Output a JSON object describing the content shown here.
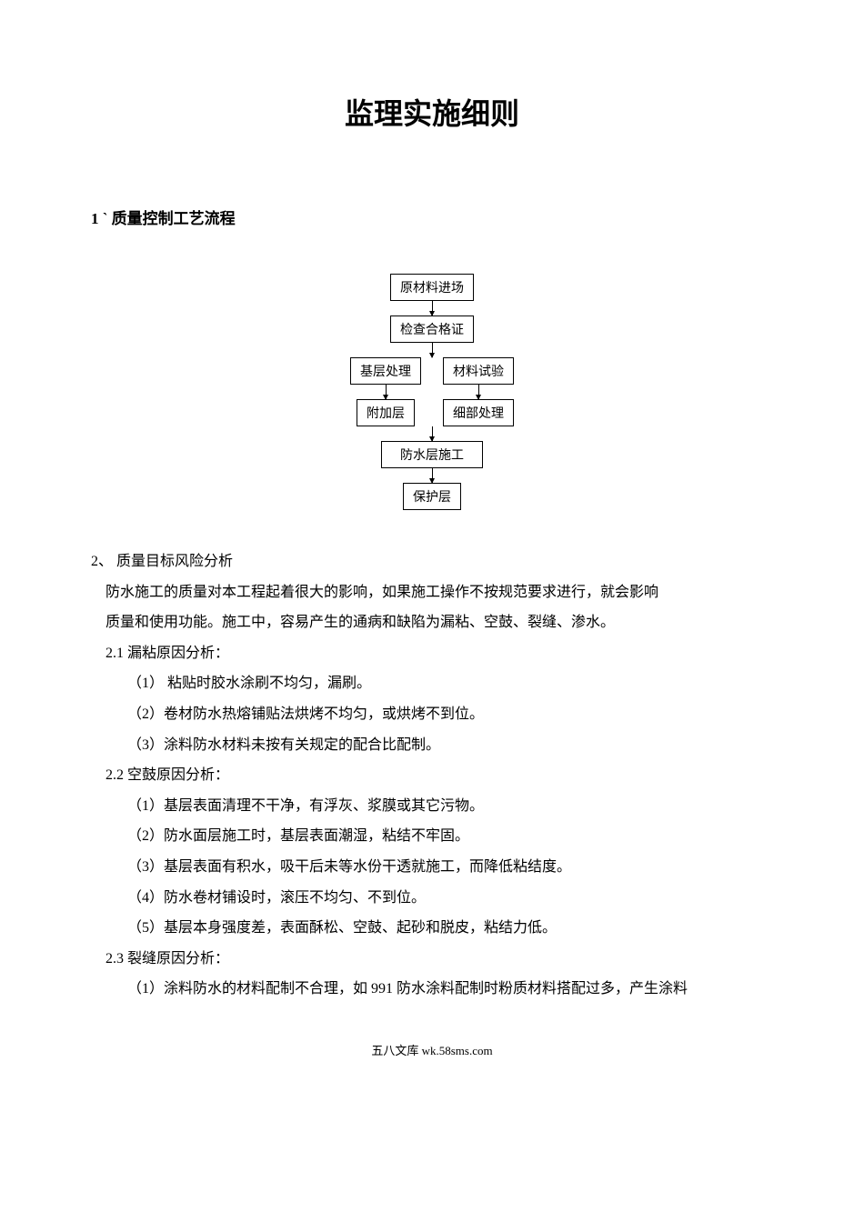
{
  "title": "监理实施细则",
  "heading1": "1 ` 质量控制工艺流程",
  "flow": {
    "n1": "原材料进场",
    "n2": "检查合格证",
    "n3a": "基层处理",
    "n3b": "材料试验",
    "n4a": "附加层",
    "n4b": "细部处理",
    "n5": "防水层施工",
    "n6": "保护层"
  },
  "section2": {
    "heading": "2、 质量目标风险分析",
    "p1": "防水施工的质量对本工程起着很大的影响，如果施工操作不按规范要求进行，就会影响",
    "p2": "质量和使用功能。施工中，容易产生的通病和缺陷为漏粘、空鼓、裂缝、渗水。",
    "s21": "2.1 漏粘原因分析：",
    "s21_1": "（1） 粘贴时胶水涂刷不均匀，漏刷。",
    "s21_2": "（2）卷材防水热熔铺贴法烘烤不均匀，或烘烤不到位。",
    "s21_3": "（3）涂料防水材料未按有关规定的配合比配制。",
    "s22": "2.2 空鼓原因分析：",
    "s22_1": "（1）基层表面清理不干净，有浮灰、浆膜或其它污物。",
    "s22_2": "（2）防水面层施工时，基层表面潮湿，粘结不牢固。",
    "s22_3": "（3）基层表面有积水，吸干后未等水份干透就施工，而降低粘结度。",
    "s22_4": "（4）防水卷材铺设时，滚压不均匀、不到位。",
    "s22_5": "（5）基层本身强度差，表面酥松、空鼓、起砂和脱皮，粘结力低。",
    "s23": "2.3 裂缝原因分析：",
    "s23_1": "（1）涂料防水的材料配制不合理，如 991 防水涂料配制时粉质材料搭配过多，产生涂料"
  },
  "footer": "五八文库 wk.58sms.com"
}
